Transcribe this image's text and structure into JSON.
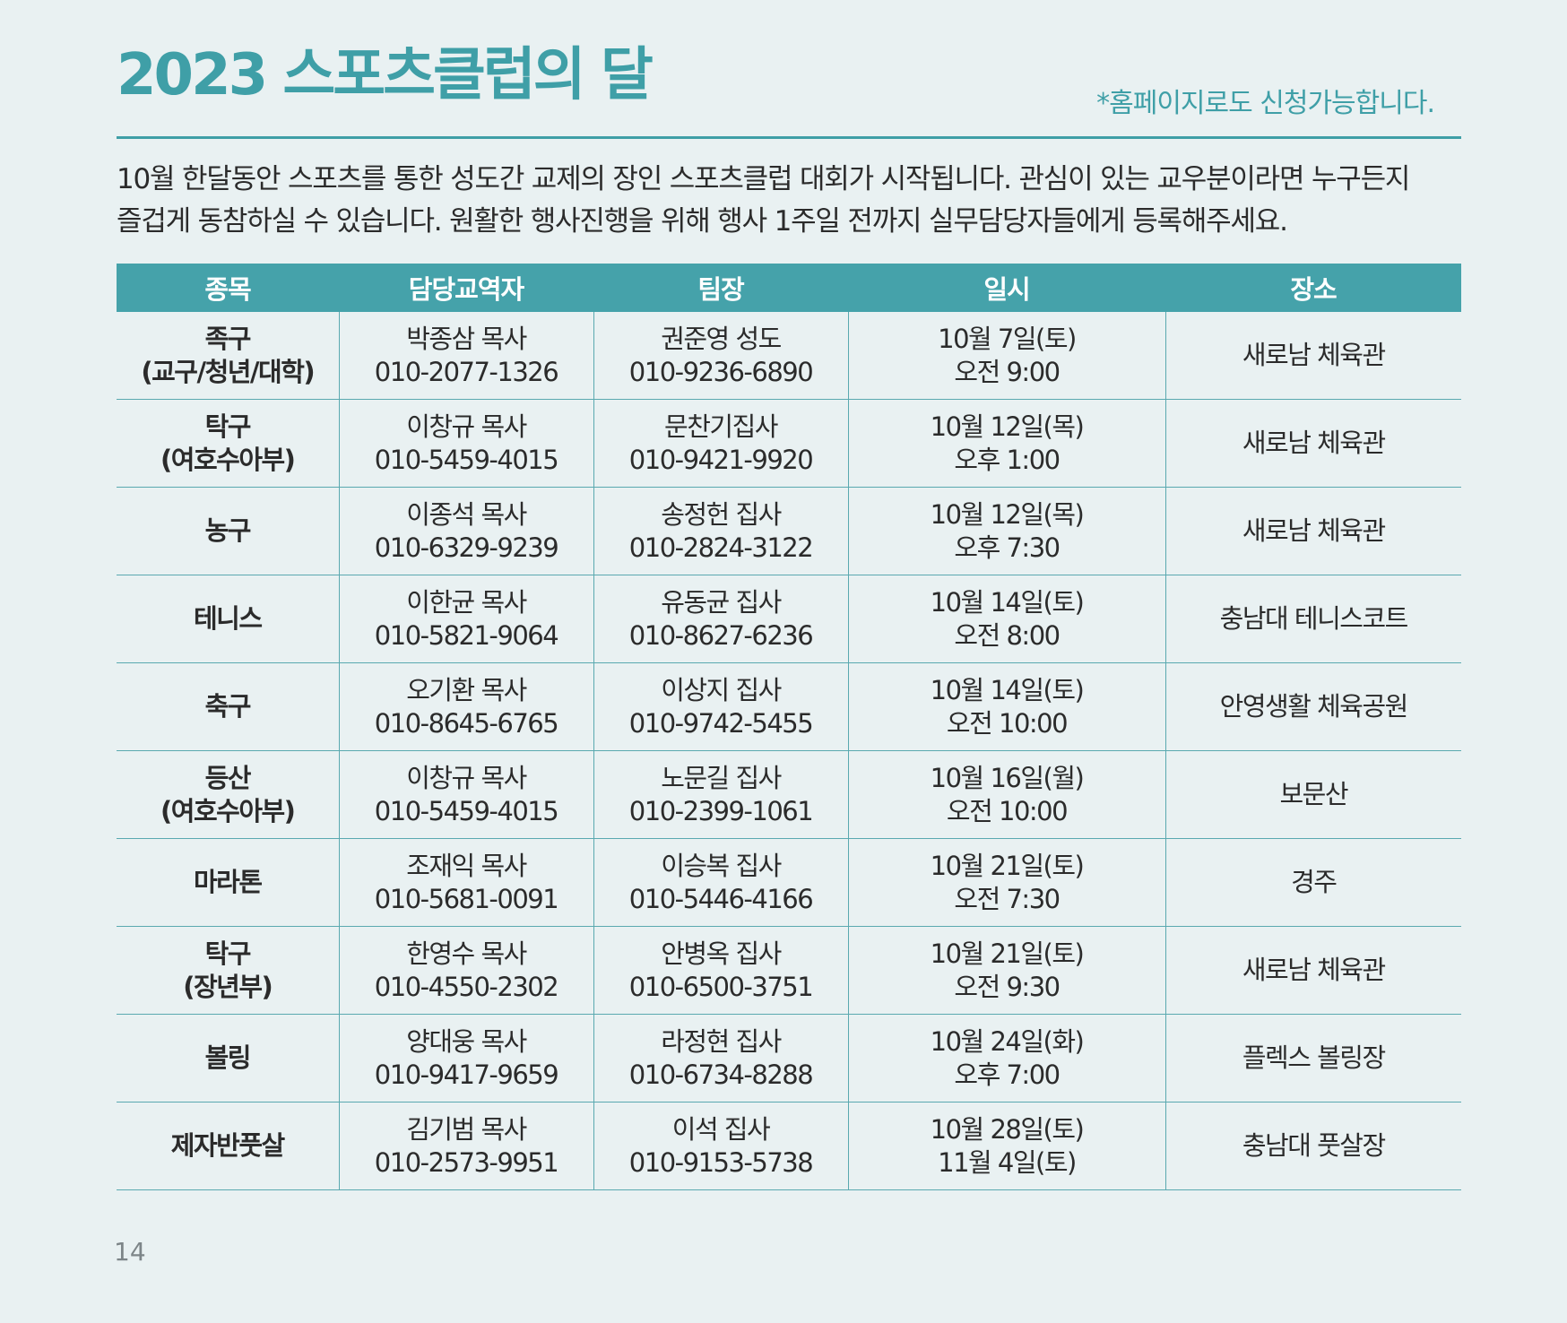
{
  "header": {
    "title": "2023 스포츠클럽의 달",
    "note": "*홈페이지로도 신청가능합니다."
  },
  "intro": {
    "line1": "10월 한달동안 스포츠를 통한 성도간 교제의 장인 스포츠클럽 대회가 시작됩니다. 관심이 있는 교우분이라면 누구든지",
    "line2": "즐겁게 동참하실 수 있습니다. 원활한 행사진행을 위해 행사 1주일 전까지 실무담당자들에게 등록해주세요."
  },
  "table": {
    "headers": [
      "종목",
      "담당교역자",
      "팀장",
      "일시",
      "장소"
    ],
    "rows": [
      {
        "event": [
          "족구",
          "(교구/청년/대학)"
        ],
        "pastor": [
          "박종삼 목사",
          "010-2077-1326"
        ],
        "leader": [
          "권준영 성도",
          "010-9236-6890"
        ],
        "date": [
          "10월 7일(토)",
          "오전 9:00"
        ],
        "place": [
          "새로남 체육관"
        ]
      },
      {
        "event": [
          "탁구",
          "(여호수아부)"
        ],
        "pastor": [
          "이창규 목사",
          "010-5459-4015"
        ],
        "leader": [
          "문찬기집사",
          "010-9421-9920"
        ],
        "date": [
          "10월 12일(목)",
          "오후 1:00"
        ],
        "place": [
          "새로남 체육관"
        ]
      },
      {
        "event": [
          "농구"
        ],
        "pastor": [
          "이종석 목사",
          "010-6329-9239"
        ],
        "leader": [
          "송정헌 집사",
          "010-2824-3122"
        ],
        "date": [
          "10월 12일(목)",
          "오후 7:30"
        ],
        "place": [
          "새로남 체육관"
        ]
      },
      {
        "event": [
          "테니스"
        ],
        "pastor": [
          "이한균 목사",
          "010-5821-9064"
        ],
        "leader": [
          "유동균 집사",
          "010-8627-6236"
        ],
        "date": [
          "10월 14일(토)",
          "오전 8:00"
        ],
        "place": [
          "충남대 테니스코트"
        ]
      },
      {
        "event": [
          "축구"
        ],
        "pastor": [
          "오기환 목사",
          "010-8645-6765"
        ],
        "leader": [
          "이상지 집사",
          "010-9742-5455"
        ],
        "date": [
          "10월 14일(토)",
          "오전 10:00"
        ],
        "place": [
          "안영생활 체육공원"
        ]
      },
      {
        "event": [
          "등산",
          "(여호수아부)"
        ],
        "pastor": [
          "이창규 목사",
          "010-5459-4015"
        ],
        "leader": [
          "노문길 집사",
          "010-2399-1061"
        ],
        "date": [
          "10월 16일(월)",
          "오전 10:00"
        ],
        "place": [
          "보문산"
        ]
      },
      {
        "event": [
          "마라톤"
        ],
        "pastor": [
          "조재익 목사",
          "010-5681-0091"
        ],
        "leader": [
          "이승복 집사",
          "010-5446-4166"
        ],
        "date": [
          "10월 21일(토)",
          "오전 7:30"
        ],
        "place": [
          "경주"
        ]
      },
      {
        "event": [
          "탁구",
          "(장년부)"
        ],
        "pastor": [
          "한영수 목사",
          "010-4550-2302"
        ],
        "leader": [
          "안병옥 집사",
          "010-6500-3751"
        ],
        "date": [
          "10월 21일(토)",
          "오전 9:30"
        ],
        "place": [
          "새로남 체육관"
        ]
      },
      {
        "event": [
          "볼링"
        ],
        "pastor": [
          "양대웅 목사",
          "010-9417-9659"
        ],
        "leader": [
          "라정현 집사",
          "010-6734-8288"
        ],
        "date": [
          "10월 24일(화)",
          "오후 7:00"
        ],
        "place": [
          "플렉스 볼링장"
        ]
      },
      {
        "event": [
          "제자반풋살"
        ],
        "pastor": [
          "김기범 목사",
          "010-2573-9951"
        ],
        "leader": [
          "이석 집사",
          "010-9153-5738"
        ],
        "date": [
          "10월 28일(토)",
          "11월 4일(토)"
        ],
        "place": [
          "충남대 풋살장"
        ]
      }
    ]
  },
  "footer": {
    "page_number": "14"
  },
  "colors": {
    "accent": "#3f9fa7",
    "header_bg": "#45a2aa",
    "page_bg": "#e9f1f2"
  }
}
